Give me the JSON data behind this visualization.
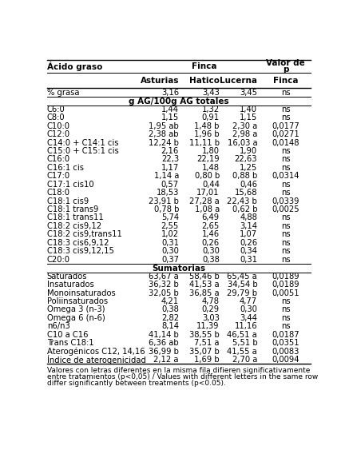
{
  "pct_grasa_row": [
    "% grasa",
    "3,16",
    "3,43",
    "3,45",
    "ns"
  ],
  "rows_individual": [
    [
      "C6:0",
      "1,44",
      "1,32",
      "1,40",
      "ns"
    ],
    [
      "C8:0",
      "1,15",
      "0,91",
      "1,15",
      "ns"
    ],
    [
      "C10:0",
      "1,95 ab",
      "1,48 b",
      "2,30 a",
      "0,0177"
    ],
    [
      "C12:0",
      "2,38 ab",
      "1,96 b",
      "2,98 a",
      "0,0271"
    ],
    [
      "C14:0 + C14:1 cis",
      "12,24 b",
      "11,11 b",
      "16,03 a",
      "0,0148"
    ],
    [
      "C15:0 + C15:1 cis",
      "2,16",
      "1,80",
      "1,90",
      "ns"
    ],
    [
      "C16:0",
      "22,3",
      "22,19",
      "22,63",
      "ns"
    ],
    [
      "C16:1 cis",
      "1,17",
      "1,48",
      "1,25",
      "ns"
    ],
    [
      "C17:0",
      "1,14 a",
      "0,80 b",
      "0,88 b",
      "0,0314"
    ],
    [
      "C17:1 cis10",
      "0,57",
      "0,44",
      "0,46",
      "ns"
    ],
    [
      "C18:0",
      "18,53",
      "17,01",
      "15,68",
      "ns"
    ],
    [
      "C18:1 cis9",
      "23,91 b",
      "27,28 a",
      "22,43 b",
      "0,0339"
    ],
    [
      "C18:1 trans9",
      "0,78 b",
      "1,08 a",
      "0,62 b",
      "0,0025"
    ],
    [
      "C18:1 trans11",
      "5,74",
      "6,49",
      "4,88",
      "ns"
    ],
    [
      "C18:2 cis9,12",
      "2,55",
      "2,65",
      "3,14",
      "ns"
    ],
    [
      "C18:2 cis9,trans11",
      "1,02",
      "1,46",
      "1,07",
      "ns"
    ],
    [
      "C18:3 cis6,9,12",
      "0,31",
      "0,26",
      "0,26",
      "ns"
    ],
    [
      "C18:3 cis9,12,15",
      "0,30",
      "0,30",
      "0,34",
      "ns"
    ],
    [
      "C20:0",
      "0,37",
      "0,38",
      "0,31",
      "ns"
    ]
  ],
  "rows_sumatorias": [
    [
      "Saturados",
      "63,67 a",
      "58,46 b",
      "65,45 a",
      "0,0189"
    ],
    [
      "Insaturados",
      "36,32 b",
      "41,53 a",
      "34,54 b",
      "0,0189"
    ],
    [
      "Monoinsaturados",
      "32,05 b",
      "36,85 a",
      "29,79 b",
      "0,0051"
    ],
    [
      "Poliinsaturados",
      "4,21",
      "4,78",
      "4,77",
      "ns"
    ],
    [
      "Omega 3 (n-3)",
      "0,38",
      "0,29",
      "0,30",
      "ns"
    ],
    [
      "Omega 6 (n-6)",
      "2,82",
      "3,03",
      "3,44",
      "ns"
    ],
    [
      "n6/n3",
      "8,14",
      "11,39",
      "11,16",
      "ns"
    ],
    [
      "C10 a C16",
      "41,14 b",
      "38,55 b",
      "46,51 a",
      "0,0187"
    ],
    [
      "Trans C18:1",
      "6,36 ab",
      "7,51 a",
      "5,51 b",
      "0,0351"
    ],
    [
      "Aterogénicos C12, 14,16",
      "36,99 b",
      "35,07 b",
      "41,55 a",
      "0,0083"
    ],
    [
      "Índice de aterogenicidad",
      "2,12 a",
      "1,69 b",
      "2,70 a",
      "0,0094"
    ]
  ],
  "footnote1": "Valores con letras diferentes en la misma fila difieren significativamente",
  "footnote2": "entre tratamientos (p<0,05) / Values with different letters in the same row",
  "footnote3": "differ significantly between treatments (p<0.05).",
  "bg_color": "#ffffff",
  "font_size": 7.2,
  "header_font_size": 7.5
}
